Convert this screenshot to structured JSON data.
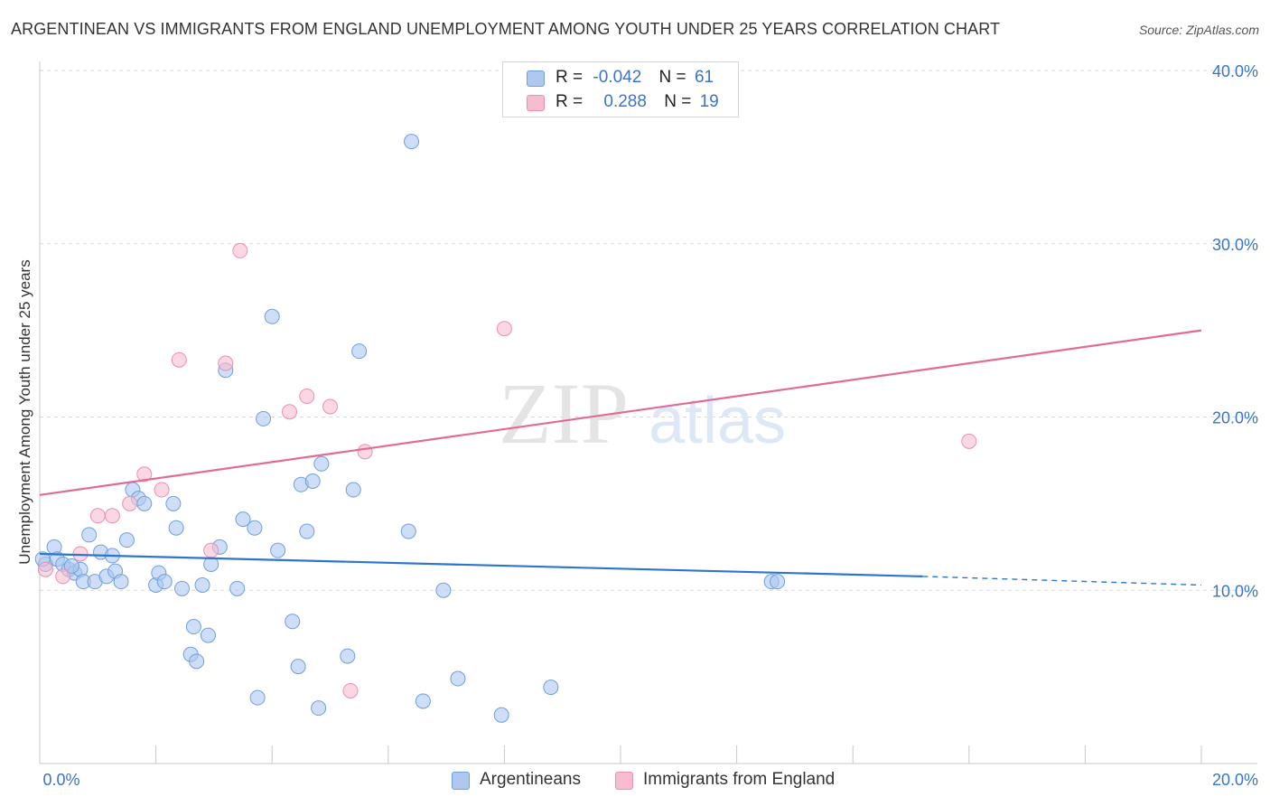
{
  "header": {
    "title": "ARGENTINEAN VS IMMIGRANTS FROM ENGLAND UNEMPLOYMENT AMONG YOUTH UNDER 25 YEARS CORRELATION CHART",
    "source": "Source: ZipAtlas.com"
  },
  "watermark": {
    "zip": "ZIP",
    "atlas": "atlas"
  },
  "stats": {
    "argentineans": {
      "r_label": "R =",
      "r": "-0.042",
      "n_label": "N =",
      "n": "61"
    },
    "england": {
      "r_label": "R =",
      "r": "0.288",
      "n_label": "N =",
      "n": "19"
    }
  },
  "legend": {
    "a": "Argentineans",
    "b": "Immigrants from England"
  },
  "colors": {
    "blue_fill": "#aec8f0",
    "blue_stroke": "#6f9fde",
    "blue_line": "#2e75d0",
    "pink_fill": "#f6bcd0",
    "pink_stroke": "#eb8fae",
    "pink_line": "#e26a96",
    "tick_text": "#3a74c8",
    "grid": "#d9d9d9"
  },
  "chart_data": {
    "type": "scatter",
    "title": "ARGENTINEAN VS IMMIGRANTS FROM ENGLAND UNEMPLOYMENT AMONG YOUTH UNDER 25 YEARS CORRELATION CHART",
    "xlabel": "",
    "ylabel": "Unemployment Among Youth under 25 years",
    "xlim": [
      0,
      20
    ],
    "ylim": [
      0,
      40
    ],
    "x_ticks": [
      "0.0%",
      "20.0%"
    ],
    "y_ticks": [
      {
        "value": 10,
        "label": "10.0%"
      },
      {
        "value": 20,
        "label": "20.0%"
      },
      {
        "value": 30,
        "label": "30.0%"
      },
      {
        "value": 40,
        "label": "40.0%"
      }
    ],
    "grid": true,
    "legend_position": "bottom",
    "series": [
      {
        "name": "Argentineans",
        "color": "#aec8f0",
        "points": [
          [
            0.1,
            11.5
          ],
          [
            0.25,
            12.5
          ],
          [
            0.3,
            11.8
          ],
          [
            0.4,
            11.5
          ],
          [
            0.5,
            11.2
          ],
          [
            0.6,
            11.0
          ],
          [
            0.7,
            11.2
          ],
          [
            0.75,
            10.5
          ],
          [
            0.85,
            13.2
          ],
          [
            0.95,
            10.5
          ],
          [
            1.05,
            12.2
          ],
          [
            1.15,
            10.8
          ],
          [
            1.25,
            12.0
          ],
          [
            1.3,
            11.1
          ],
          [
            1.4,
            10.5
          ],
          [
            1.5,
            12.9
          ],
          [
            1.6,
            15.8
          ],
          [
            1.7,
            15.3
          ],
          [
            1.8,
            15.0
          ],
          [
            2.0,
            10.3
          ],
          [
            2.05,
            11.0
          ],
          [
            2.15,
            10.5
          ],
          [
            2.3,
            15.0
          ],
          [
            2.35,
            13.6
          ],
          [
            2.45,
            10.1
          ],
          [
            2.6,
            6.3
          ],
          [
            2.7,
            5.9
          ],
          [
            2.65,
            7.9
          ],
          [
            2.8,
            10.3
          ],
          [
            2.9,
            7.4
          ],
          [
            2.95,
            11.5
          ],
          [
            3.1,
            12.5
          ],
          [
            3.2,
            22.7
          ],
          [
            3.4,
            10.1
          ],
          [
            3.5,
            14.1
          ],
          [
            3.7,
            13.6
          ],
          [
            3.85,
            19.9
          ],
          [
            3.75,
            3.8
          ],
          [
            4.0,
            25.8
          ],
          [
            4.1,
            12.3
          ],
          [
            4.35,
            8.2
          ],
          [
            4.45,
            5.6
          ],
          [
            4.5,
            16.1
          ],
          [
            4.6,
            13.4
          ],
          [
            4.7,
            16.3
          ],
          [
            4.8,
            3.2
          ],
          [
            4.85,
            17.3
          ],
          [
            5.3,
            6.2
          ],
          [
            5.4,
            15.8
          ],
          [
            5.5,
            23.8
          ],
          [
            6.35,
            13.4
          ],
          [
            6.4,
            35.9
          ],
          [
            6.6,
            3.6
          ],
          [
            6.95,
            10.0
          ],
          [
            7.2,
            4.9
          ],
          [
            7.95,
            2.8
          ],
          [
            8.8,
            4.4
          ],
          [
            12.6,
            10.5
          ],
          [
            12.7,
            10.5
          ],
          [
            0.05,
            11.8
          ],
          [
            0.55,
            11.4
          ]
        ],
        "trend": {
          "x": [
            0,
            15.2
          ],
          "y": [
            12.1,
            10.8
          ],
          "dashed_to": [
            20,
            10.3
          ]
        }
      },
      {
        "name": "Immigrants from England",
        "color": "#f6bcd0",
        "points": [
          [
            0.1,
            11.2
          ],
          [
            0.4,
            10.8
          ],
          [
            0.7,
            12.1
          ],
          [
            1.0,
            14.3
          ],
          [
            1.25,
            14.3
          ],
          [
            1.55,
            15.0
          ],
          [
            1.8,
            16.7
          ],
          [
            2.1,
            15.8
          ],
          [
            2.4,
            23.3
          ],
          [
            2.95,
            12.3
          ],
          [
            3.2,
            23.1
          ],
          [
            3.45,
            29.6
          ],
          [
            4.3,
            20.3
          ],
          [
            4.6,
            21.2
          ],
          [
            5.0,
            20.6
          ],
          [
            5.6,
            18.0
          ],
          [
            5.35,
            4.2
          ],
          [
            8.0,
            25.1
          ],
          [
            16.0,
            18.6
          ]
        ],
        "trend": {
          "x": [
            0,
            20
          ],
          "y": [
            15.5,
            25.0
          ]
        }
      }
    ]
  }
}
